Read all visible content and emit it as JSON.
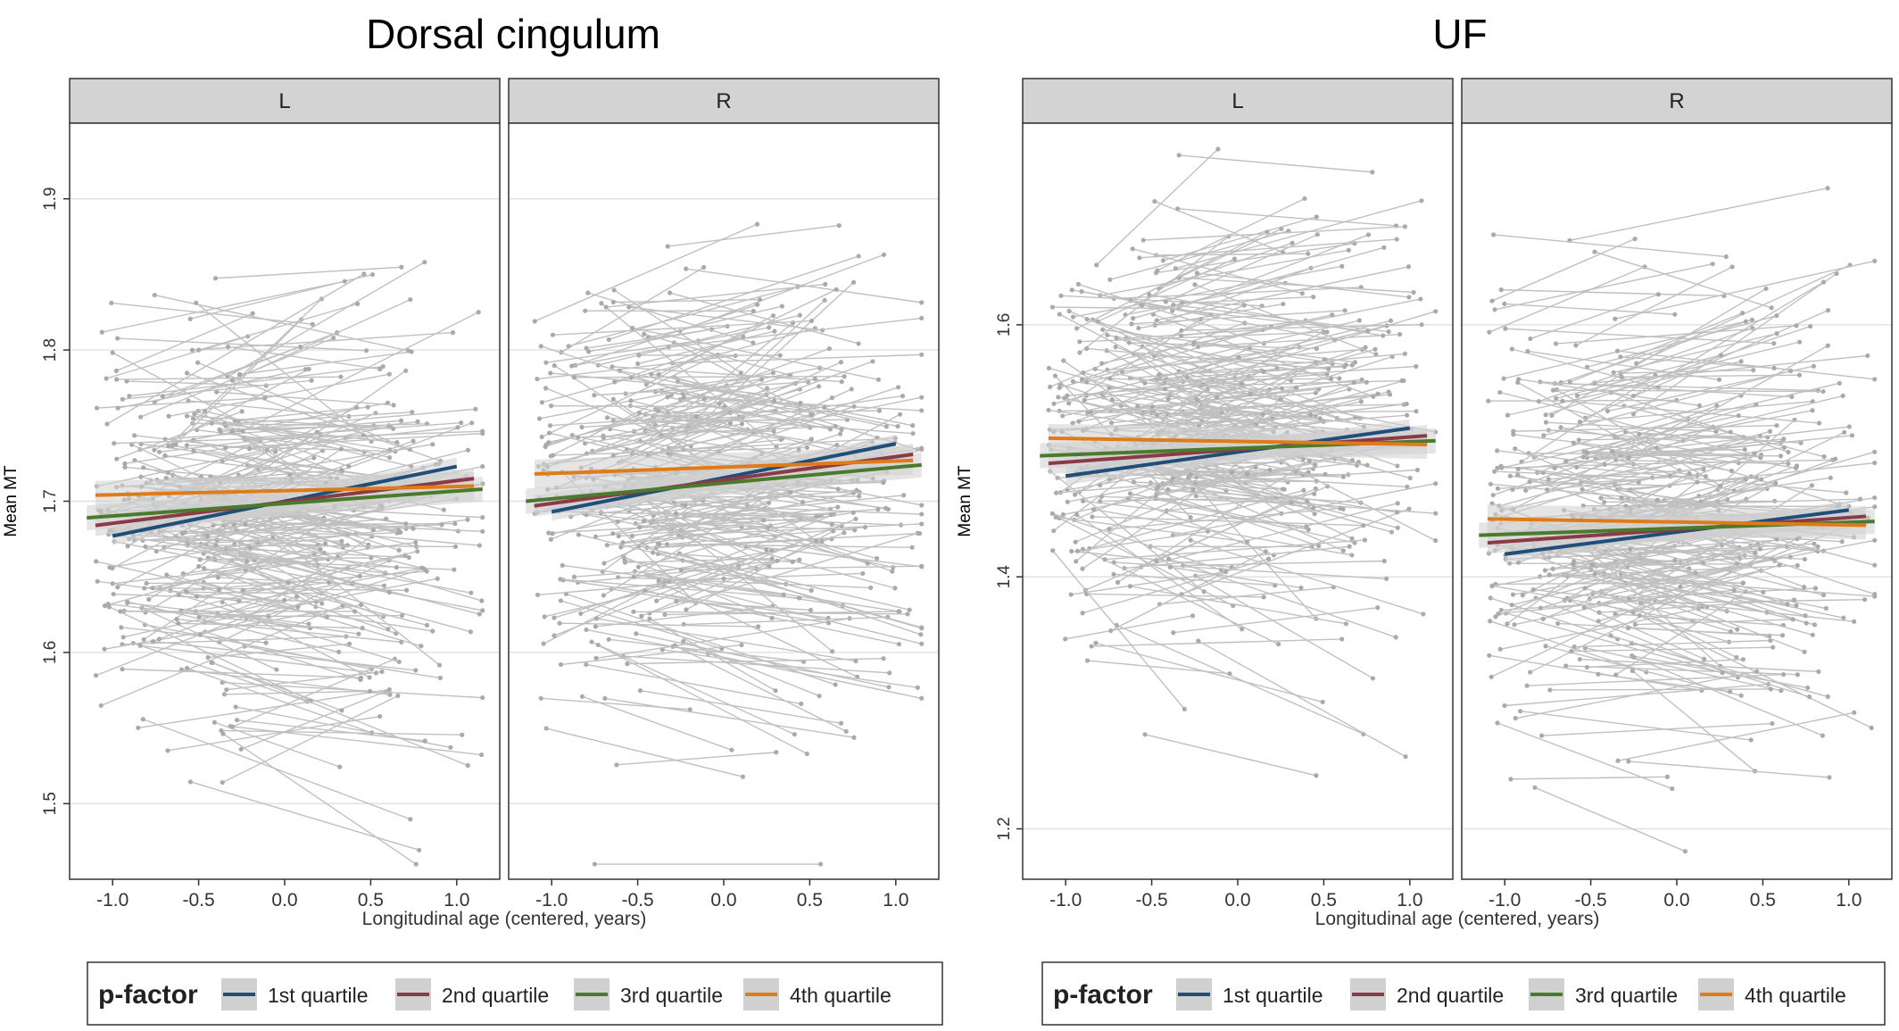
{
  "colors": {
    "quartile1": "#1f4e79",
    "quartile2": "#8b3a47",
    "quartile3": "#4a7a2c",
    "quartile4": "#e07b1a",
    "raw_lines": "#c0c0c0",
    "strip": "#d3d3d3",
    "ribbon": "#d0d0d0"
  },
  "chart_data": [
    {
      "type": "line",
      "title": "Dorsal cingulum",
      "xlabel": "Longitudinal age (centered, years)",
      "ylabel": "Mean MT",
      "xlim": [
        -1.25,
        1.25
      ],
      "ylim": [
        1.45,
        1.95
      ],
      "xticks": [
        "-1.0",
        "-0.5",
        "0.0",
        "0.5",
        "1.0"
      ],
      "xtick_values": [
        -1.0,
        -0.5,
        0.0,
        0.5,
        1.0
      ],
      "yticks": [
        "1.5",
        "1.6",
        "1.7",
        "1.8",
        "1.9"
      ],
      "ytick_values": [
        1.5,
        1.6,
        1.7,
        1.8,
        1.9
      ],
      "grid": true,
      "raw_individual_trajectories": true,
      "legend": {
        "title": "p-factor",
        "placement": "bottom",
        "entries": [
          "1st quartile",
          "2nd quartile",
          "3rd quartile",
          "4th quartile"
        ]
      },
      "panels": [
        {
          "label": "L",
          "series": [
            {
              "name": "1st quartile",
              "x": [
                -1.0,
                1.0
              ],
              "y": [
                1.677,
                1.723
              ]
            },
            {
              "name": "2nd quartile",
              "x": [
                -1.1,
                1.1
              ],
              "y": [
                1.684,
                1.715
              ]
            },
            {
              "name": "3rd quartile",
              "x": [
                -1.15,
                1.15
              ],
              "y": [
                1.689,
                1.708
              ]
            },
            {
              "name": "4th quartile",
              "x": [
                -1.1,
                1.1
              ],
              "y": [
                1.704,
                1.71
              ]
            }
          ]
        },
        {
          "label": "R",
          "series": [
            {
              "name": "1st quartile",
              "x": [
                -1.0,
                1.0
              ],
              "y": [
                1.693,
                1.738
              ]
            },
            {
              "name": "2nd quartile",
              "x": [
                -1.1,
                1.1
              ],
              "y": [
                1.697,
                1.731
              ]
            },
            {
              "name": "3rd quartile",
              "x": [
                -1.15,
                1.15
              ],
              "y": [
                1.7,
                1.724
              ]
            },
            {
              "name": "4th quartile",
              "x": [
                -1.1,
                1.1
              ],
              "y": [
                1.718,
                1.727
              ]
            }
          ]
        }
      ]
    },
    {
      "type": "line",
      "title": "UF",
      "xlabel": "Longitudinal age (centered, years)",
      "ylabel": "Mean MT",
      "xlim": [
        -1.25,
        1.25
      ],
      "ylim": [
        1.16,
        1.76
      ],
      "xticks": [
        "-1.0",
        "-0.5",
        "0.0",
        "0.5",
        "1.0"
      ],
      "xtick_values": [
        -1.0,
        -0.5,
        0.0,
        0.5,
        1.0
      ],
      "yticks": [
        "1.2",
        "1.4",
        "1.6"
      ],
      "ytick_values": [
        1.2,
        1.4,
        1.6
      ],
      "grid": true,
      "raw_individual_trajectories": true,
      "legend": {
        "title": "p-factor",
        "placement": "bottom",
        "entries": [
          "1st quartile",
          "2nd quartile",
          "3rd quartile",
          "4th quartile"
        ]
      },
      "panels": [
        {
          "label": "L",
          "series": [
            {
              "name": "1st quartile",
              "x": [
                -1.0,
                1.0
              ],
              "y": [
                1.48,
                1.518
              ]
            },
            {
              "name": "2nd quartile",
              "x": [
                -1.1,
                1.1
              ],
              "y": [
                1.49,
                1.512
              ]
            },
            {
              "name": "3rd quartile",
              "x": [
                -1.15,
                1.15
              ],
              "y": [
                1.496,
                1.508
              ]
            },
            {
              "name": "4th quartile",
              "x": [
                -1.1,
                1.1
              ],
              "y": [
                1.51,
                1.505
              ]
            }
          ]
        },
        {
          "label": "R",
          "series": [
            {
              "name": "1st quartile",
              "x": [
                -1.0,
                1.0
              ],
              "y": [
                1.418,
                1.453
              ]
            },
            {
              "name": "2nd quartile",
              "x": [
                -1.1,
                1.1
              ],
              "y": [
                1.427,
                1.448
              ]
            },
            {
              "name": "3rd quartile",
              "x": [
                -1.15,
                1.15
              ],
              "y": [
                1.433,
                1.444
              ]
            },
            {
              "name": "4th quartile",
              "x": [
                -1.1,
                1.1
              ],
              "y": [
                1.446,
                1.441
              ]
            }
          ]
        }
      ]
    }
  ]
}
